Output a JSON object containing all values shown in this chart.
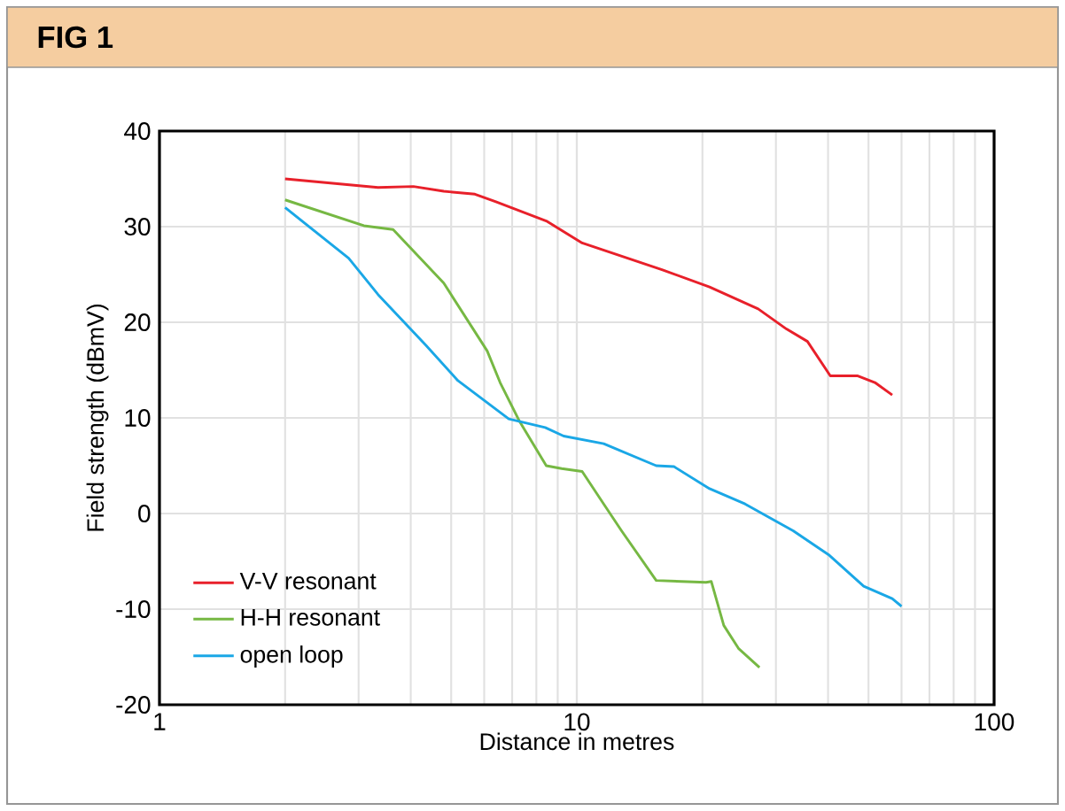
{
  "chart_data": {
    "type": "line",
    "title": "FIG 1",
    "xlabel": "Distance in metres",
    "ylabel": "Field strength (dBmV)",
    "log": "x",
    "xlim": [
      1,
      100
    ],
    "xticks": [
      1,
      10,
      100
    ],
    "ylim": [
      -20,
      40
    ],
    "yticks": [
      -20,
      -10,
      0,
      10,
      20,
      30,
      40
    ],
    "grid": true,
    "legend": "bottom left",
    "marker": "none",
    "line_style": "solid",
    "series": [
      {
        "name": "V-V resonant",
        "color": "#e8202a",
        "x": [
          2,
          3.34,
          4.06,
          4.8,
          5.7,
          6.4,
          8.45,
          10.3,
          16,
          20.8,
          27.2,
          31.8,
          35.7,
          40.5,
          47,
          51.8,
          57
        ],
        "values": [
          35,
          34.1,
          34.2,
          33.7,
          33.4,
          32.6,
          30.6,
          28.3,
          25.5,
          23.7,
          21.4,
          19.3,
          18,
          14.4,
          14.4,
          13.7,
          12.4
        ]
      },
      {
        "name": "H-H resonant",
        "color": "#76b843",
        "x": [
          2,
          3.09,
          3.63,
          4.8,
          6.1,
          6.55,
          7.3,
          8.45,
          9.2,
          10.3,
          11.6,
          12.8,
          15.5,
          20.4,
          21,
          22.5,
          24.4,
          27.4
        ],
        "values": [
          32.8,
          30.1,
          29.7,
          24.1,
          17,
          13.7,
          9.6,
          5,
          4.7,
          4.4,
          1,
          -1.8,
          -7,
          -7.2,
          -7.1,
          -11.7,
          -14.1,
          -16.1
        ]
      },
      {
        "name": "open loop",
        "color": "#1aa7e6",
        "x": [
          2,
          2.84,
          3.34,
          4.35,
          5.19,
          6.87,
          8.4,
          9.3,
          11.6,
          15.5,
          17.1,
          20.8,
          25.3,
          33,
          40.1,
          48.7,
          57,
          60
        ],
        "values": [
          32,
          26.7,
          22.9,
          17.6,
          13.9,
          9.9,
          9,
          8.1,
          7.3,
          5,
          4.9,
          2.6,
          1,
          -1.8,
          -4.3,
          -7.6,
          -8.9,
          -9.7
        ]
      }
    ]
  }
}
